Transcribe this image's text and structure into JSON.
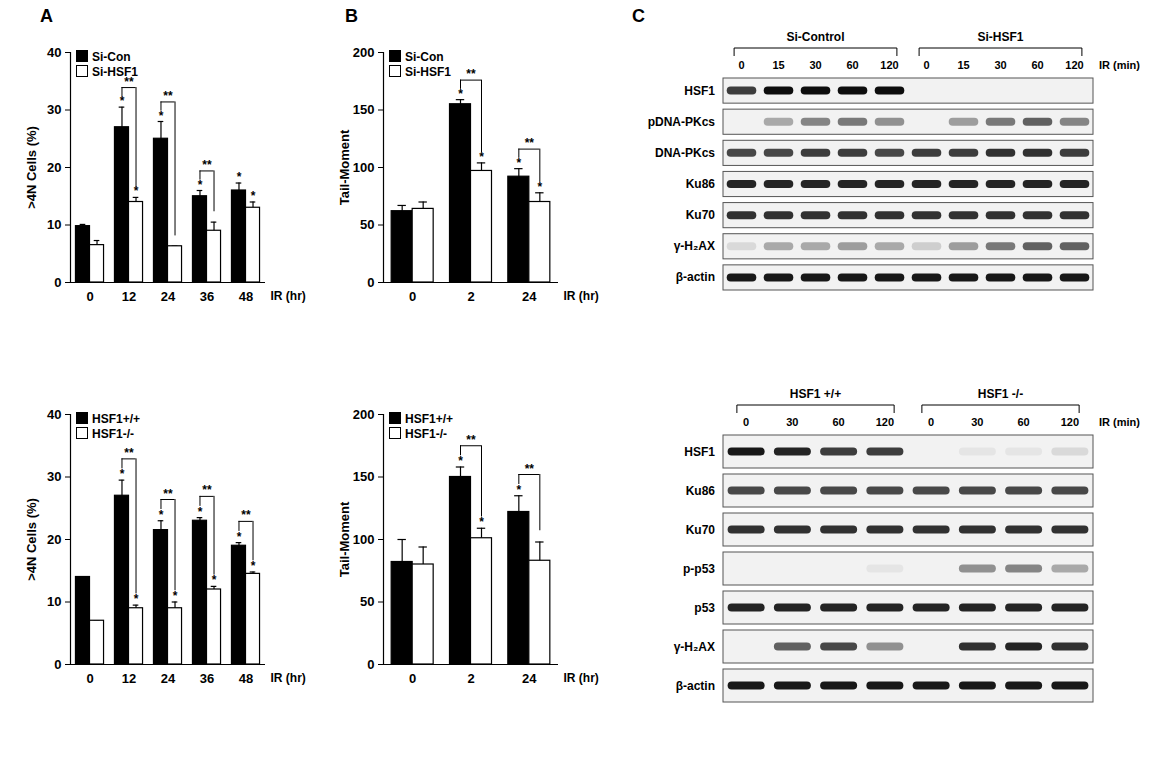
{
  "panel_labels": [
    "A",
    "B",
    "C"
  ],
  "chart_data": [
    {
      "type": "bar",
      "ylabel": ">4N Cells (%)",
      "xlabel": "IR (hr)",
      "categories": [
        "0",
        "12",
        "24",
        "36",
        "48"
      ],
      "ylim": [
        0,
        40
      ],
      "yticks": [
        0,
        10,
        20,
        30,
        40
      ],
      "legend": "upper left",
      "series": [
        {
          "name": "Si-Con",
          "color": "#000000",
          "values": [
            9.8,
            27,
            25,
            15,
            16
          ],
          "errors": [
            0.3,
            3.5,
            3,
            1,
            1.3
          ],
          "stars": [
            null,
            "*",
            "*",
            "*",
            "*"
          ]
        },
        {
          "name": "Si-HSF1",
          "color": "#ffffff",
          "values": [
            6.5,
            14,
            6.3,
            9,
            13
          ],
          "errors": [
            0.8,
            0.8,
            0,
            1.5,
            1
          ],
          "stars": [
            null,
            "*",
            null,
            null,
            "*"
          ]
        }
      ],
      "brackets": [
        {
          "category": "12",
          "label": "**"
        },
        {
          "category": "24",
          "label": "**"
        },
        {
          "category": "36",
          "label": "**"
        }
      ]
    },
    {
      "type": "bar",
      "ylabel": "Tail-Moment",
      "xlabel": "IR (hr)",
      "categories": [
        "0",
        "2",
        "24"
      ],
      "ylim": [
        0,
        200
      ],
      "yticks": [
        0,
        50,
        100,
        150,
        200
      ],
      "legend": "upper left",
      "series": [
        {
          "name": "Si-Con",
          "color": "#000000",
          "values": [
            62,
            155,
            92
          ],
          "errors": [
            5,
            4,
            7
          ],
          "stars": [
            null,
            "*",
            "*"
          ]
        },
        {
          "name": "Si-HSF1",
          "color": "#ffffff",
          "values": [
            64,
            97,
            70
          ],
          "errors": [
            6,
            7,
            8
          ],
          "stars": [
            null,
            "*",
            "*"
          ]
        }
      ],
      "brackets": [
        {
          "category": "2",
          "label": "**"
        },
        {
          "category": "24",
          "label": "**"
        }
      ]
    },
    {
      "type": "bar",
      "ylabel": ">4N Cells (%)",
      "xlabel": "IR (hr)",
      "categories": [
        "0",
        "12",
        "24",
        "36",
        "48"
      ],
      "ylim": [
        0,
        40
      ],
      "yticks": [
        0,
        10,
        20,
        30,
        40
      ],
      "legend": "upper left",
      "series": [
        {
          "name": "HSF1+/+",
          "color": "#000000",
          "values": [
            14,
            27,
            21.5,
            23,
            19
          ],
          "errors": [
            0,
            2.5,
            1.5,
            0.5,
            0.5
          ],
          "stars": [
            null,
            "*",
            "*",
            "*",
            "*"
          ]
        },
        {
          "name": "HSF1-/-",
          "color": "#ffffff",
          "values": [
            7,
            9,
            9,
            12,
            14.5
          ],
          "errors": [
            0,
            0.5,
            1,
            0.5,
            0.3
          ],
          "stars": [
            null,
            "*",
            "*",
            "*",
            "*"
          ]
        }
      ],
      "brackets": [
        {
          "category": "12",
          "label": "**"
        },
        {
          "category": "24",
          "label": "**"
        },
        {
          "category": "36",
          "label": "**"
        },
        {
          "category": "48",
          "label": "**"
        }
      ]
    },
    {
      "type": "bar",
      "ylabel": "Tail-Moment",
      "xlabel": "IR (hr)",
      "categories": [
        "0",
        "2",
        "24"
      ],
      "ylim": [
        0,
        200
      ],
      "yticks": [
        0,
        50,
        100,
        150,
        200
      ],
      "legend": "upper left",
      "series": [
        {
          "name": "HSF1+/+",
          "color": "#000000",
          "values": [
            82,
            150,
            122
          ],
          "errors": [
            18,
            8,
            13
          ],
          "stars": [
            null,
            "*",
            "*"
          ]
        },
        {
          "name": "HSF1-/-",
          "color": "#ffffff",
          "values": [
            80,
            101,
            83
          ],
          "errors": [
            14,
            8,
            15
          ],
          "stars": [
            null,
            "*",
            null
          ]
        }
      ],
      "brackets": [
        {
          "category": "2",
          "label": "**"
        },
        {
          "category": "24",
          "label": "**"
        }
      ]
    }
  ],
  "blots": [
    {
      "lane_label": "IR (min)",
      "groups": [
        {
          "label": "Si-Control",
          "lanes": [
            "0",
            "15",
            "30",
            "60",
            "120"
          ]
        },
        {
          "label": "Si-HSF1",
          "lanes": [
            "0",
            "15",
            "30",
            "60",
            "120"
          ]
        }
      ],
      "rows": [
        {
          "label": "HSF1",
          "intensity": [
            0.75,
            0.95,
            0.95,
            0.95,
            0.95,
            0,
            0,
            0,
            0,
            0
          ]
        },
        {
          "label": "pDNA-PKcs",
          "intensity": [
            0,
            0.3,
            0.45,
            0.5,
            0.4,
            0,
            0.35,
            0.5,
            0.6,
            0.45
          ]
        },
        {
          "label": "DNA-PKcs",
          "intensity": [
            0.7,
            0.7,
            0.75,
            0.75,
            0.7,
            0.75,
            0.75,
            0.8,
            0.8,
            0.75
          ]
        },
        {
          "label": "Ku86",
          "intensity": [
            0.85,
            0.85,
            0.85,
            0.85,
            0.85,
            0.85,
            0.85,
            0.85,
            0.85,
            0.85
          ]
        },
        {
          "label": "Ku70",
          "intensity": [
            0.8,
            0.8,
            0.8,
            0.8,
            0.8,
            0.8,
            0.8,
            0.8,
            0.8,
            0.8
          ]
        },
        {
          "label": "γ-H₂AX",
          "intensity": [
            0.1,
            0.3,
            0.3,
            0.35,
            0.3,
            0.15,
            0.35,
            0.5,
            0.6,
            0.6
          ]
        },
        {
          "label": "β-actin",
          "intensity": [
            0.9,
            0.9,
            0.9,
            0.9,
            0.9,
            0.9,
            0.9,
            0.9,
            0.9,
            0.9
          ]
        }
      ]
    },
    {
      "lane_label": "IR (min)",
      "groups": [
        {
          "label": "HSF1 +/+",
          "lanes": [
            "0",
            "30",
            "60",
            "120"
          ]
        },
        {
          "label": "HSF1 -/-",
          "lanes": [
            "0",
            "30",
            "60",
            "120"
          ]
        }
      ],
      "rows": [
        {
          "label": "HSF1",
          "intensity": [
            0.9,
            0.85,
            0.75,
            0.75,
            0,
            0.05,
            0.05,
            0.1
          ]
        },
        {
          "label": "Ku86",
          "intensity": [
            0.7,
            0.7,
            0.7,
            0.7,
            0.7,
            0.7,
            0.7,
            0.7
          ]
        },
        {
          "label": "Ku70",
          "intensity": [
            0.8,
            0.8,
            0.8,
            0.8,
            0.8,
            0.8,
            0.8,
            0.8
          ]
        },
        {
          "label": "p-p53",
          "intensity": [
            0,
            0,
            0,
            0.05,
            0,
            0.4,
            0.45,
            0.3
          ]
        },
        {
          "label": "p53",
          "intensity": [
            0.85,
            0.85,
            0.85,
            0.85,
            0.85,
            0.85,
            0.85,
            0.85
          ]
        },
        {
          "label": "γ-H₂AX",
          "intensity": [
            0,
            0.6,
            0.7,
            0.4,
            0,
            0.8,
            0.85,
            0.8
          ]
        },
        {
          "label": "β-actin",
          "intensity": [
            0.9,
            0.9,
            0.9,
            0.9,
            0.9,
            0.9,
            0.9,
            0.9
          ]
        }
      ]
    }
  ]
}
